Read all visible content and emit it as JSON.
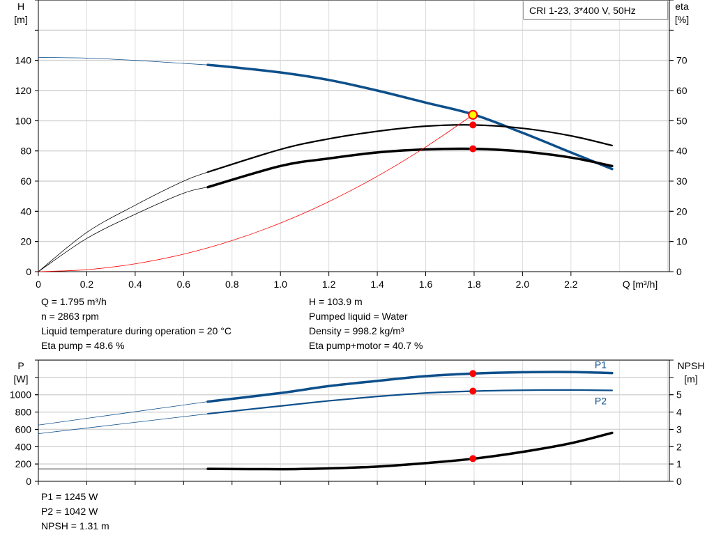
{
  "chart_data": [
    {
      "type": "line",
      "title": "CRI 1-23, 3*400 V, 50Hz",
      "xlabel": "Q [m³/h]",
      "ylabel_left": [
        "H",
        "[m]"
      ],
      "ylabel_right": [
        "eta",
        "[%]"
      ],
      "xlim": [
        0,
        2.6
      ],
      "ylim_left": [
        0,
        180
      ],
      "ylim_right": [
        0,
        90
      ],
      "xticks": [
        "0",
        "0.2",
        "0.4",
        "0.6",
        "0.8",
        "1.0",
        "1.2",
        "1.4",
        "1.6",
        "1.8",
        "2.0",
        "2.2"
      ],
      "yticks_left": [
        "0",
        "20",
        "40",
        "60",
        "80",
        "100",
        "120",
        "140"
      ],
      "yticks_right": [
        "0",
        "10",
        "20",
        "30",
        "40",
        "50",
        "60",
        "70"
      ],
      "grid": true,
      "series": [
        {
          "id": "head",
          "axis": "left",
          "color": "#0d4f8b",
          "x": [
            0,
            0.2,
            0.4,
            0.6,
            0.7,
            0.8,
            1.0,
            1.2,
            1.4,
            1.6,
            1.8,
            2.0,
            2.2,
            2.37
          ],
          "y": [
            142,
            141.5,
            140,
            138,
            137,
            135.5,
            132,
            127,
            120,
            112,
            104,
            92,
            79,
            68
          ]
        },
        {
          "id": "eta-pump",
          "axis": "right",
          "color": "#000000",
          "x": [
            0,
            0.2,
            0.4,
            0.6,
            0.7,
            1.0,
            1.2,
            1.4,
            1.6,
            1.8,
            2.0,
            2.2,
            2.37
          ],
          "y": [
            0,
            13,
            22,
            30,
            33,
            40.5,
            44,
            46.5,
            48.2,
            48.6,
            47.5,
            45,
            41.8
          ]
        },
        {
          "id": "eta-pump-motor",
          "axis": "right",
          "color": "#000000",
          "x": [
            0,
            0.2,
            0.4,
            0.6,
            0.7,
            1.0,
            1.2,
            1.4,
            1.6,
            1.8,
            2.0,
            2.2,
            2.37
          ],
          "y": [
            0,
            11,
            19,
            26,
            28,
            35,
            37.5,
            39.5,
            40.5,
            40.7,
            39.8,
            37.8,
            35
          ]
        },
        {
          "id": "system-curve",
          "axis": "left",
          "color": "#ff0000",
          "x": [
            0,
            0.2,
            0.4,
            0.6,
            0.8,
            1.0,
            1.2,
            1.4,
            1.6,
            1.795
          ],
          "y": [
            0,
            1.3,
            5.2,
            11.6,
            20.6,
            32.2,
            46.4,
            63.2,
            82.6,
            103.9
          ]
        }
      ],
      "duty_point": {
        "x": 1.795,
        "head": 103.9,
        "eta_pump": 48.6,
        "eta_pump_motor": 40.7
      }
    },
    {
      "type": "line",
      "ylabel_left": [
        "P",
        "[W]"
      ],
      "ylabel_right": [
        "NPSH",
        "[m]"
      ],
      "xlim": [
        0,
        2.6
      ],
      "ylim_left": [
        0,
        1400
      ],
      "ylim_right": [
        0,
        7
      ],
      "yticks_left": [
        "0",
        "200",
        "400",
        "600",
        "800",
        "1000"
      ],
      "yticks_right": [
        "0",
        "1",
        "2",
        "3",
        "4",
        "5"
      ],
      "grid": true,
      "series": [
        {
          "id": "p1",
          "name": "P1",
          "axis": "left",
          "color": "#0d4f8b",
          "x": [
            0,
            0.7,
            1.0,
            1.2,
            1.4,
            1.6,
            1.8,
            2.0,
            2.2,
            2.37
          ],
          "y": [
            650,
            920,
            1020,
            1100,
            1160,
            1215,
            1245,
            1260,
            1262,
            1250
          ]
        },
        {
          "id": "p2",
          "name": "P2",
          "axis": "left",
          "color": "#0d4f8b",
          "x": [
            0,
            0.7,
            1.0,
            1.2,
            1.4,
            1.6,
            1.8,
            2.0,
            2.2,
            2.37
          ],
          "y": [
            550,
            780,
            870,
            930,
            980,
            1020,
            1042,
            1052,
            1055,
            1050
          ]
        },
        {
          "id": "npsh",
          "axis": "right",
          "color": "#000000",
          "x": [
            0,
            0.7,
            1.0,
            1.2,
            1.4,
            1.6,
            1.8,
            2.0,
            2.2,
            2.37
          ],
          "y": [
            0.72,
            0.72,
            0.7,
            0.75,
            0.85,
            1.05,
            1.31,
            1.7,
            2.2,
            2.8
          ]
        }
      ],
      "duty_point": {
        "x": 1.795,
        "p1": 1245,
        "p2": 1042,
        "npsh": 1.31
      }
    }
  ],
  "info_top": {
    "left": [
      "Q = 1.795 m³/h",
      "n = 2863 rpm",
      "Liquid temperature during operation = 20 °C",
      "Eta pump = 48.6 %"
    ],
    "right": [
      "H = 103.9 m",
      "Pumped liquid = Water",
      "Density = 998.2 kg/m³",
      "Eta pump+motor = 40.7 %"
    ]
  },
  "info_bottom": [
    "P1 = 1245 W",
    "P2 = 1042 W",
    "NPSH = 1.31 m"
  ]
}
